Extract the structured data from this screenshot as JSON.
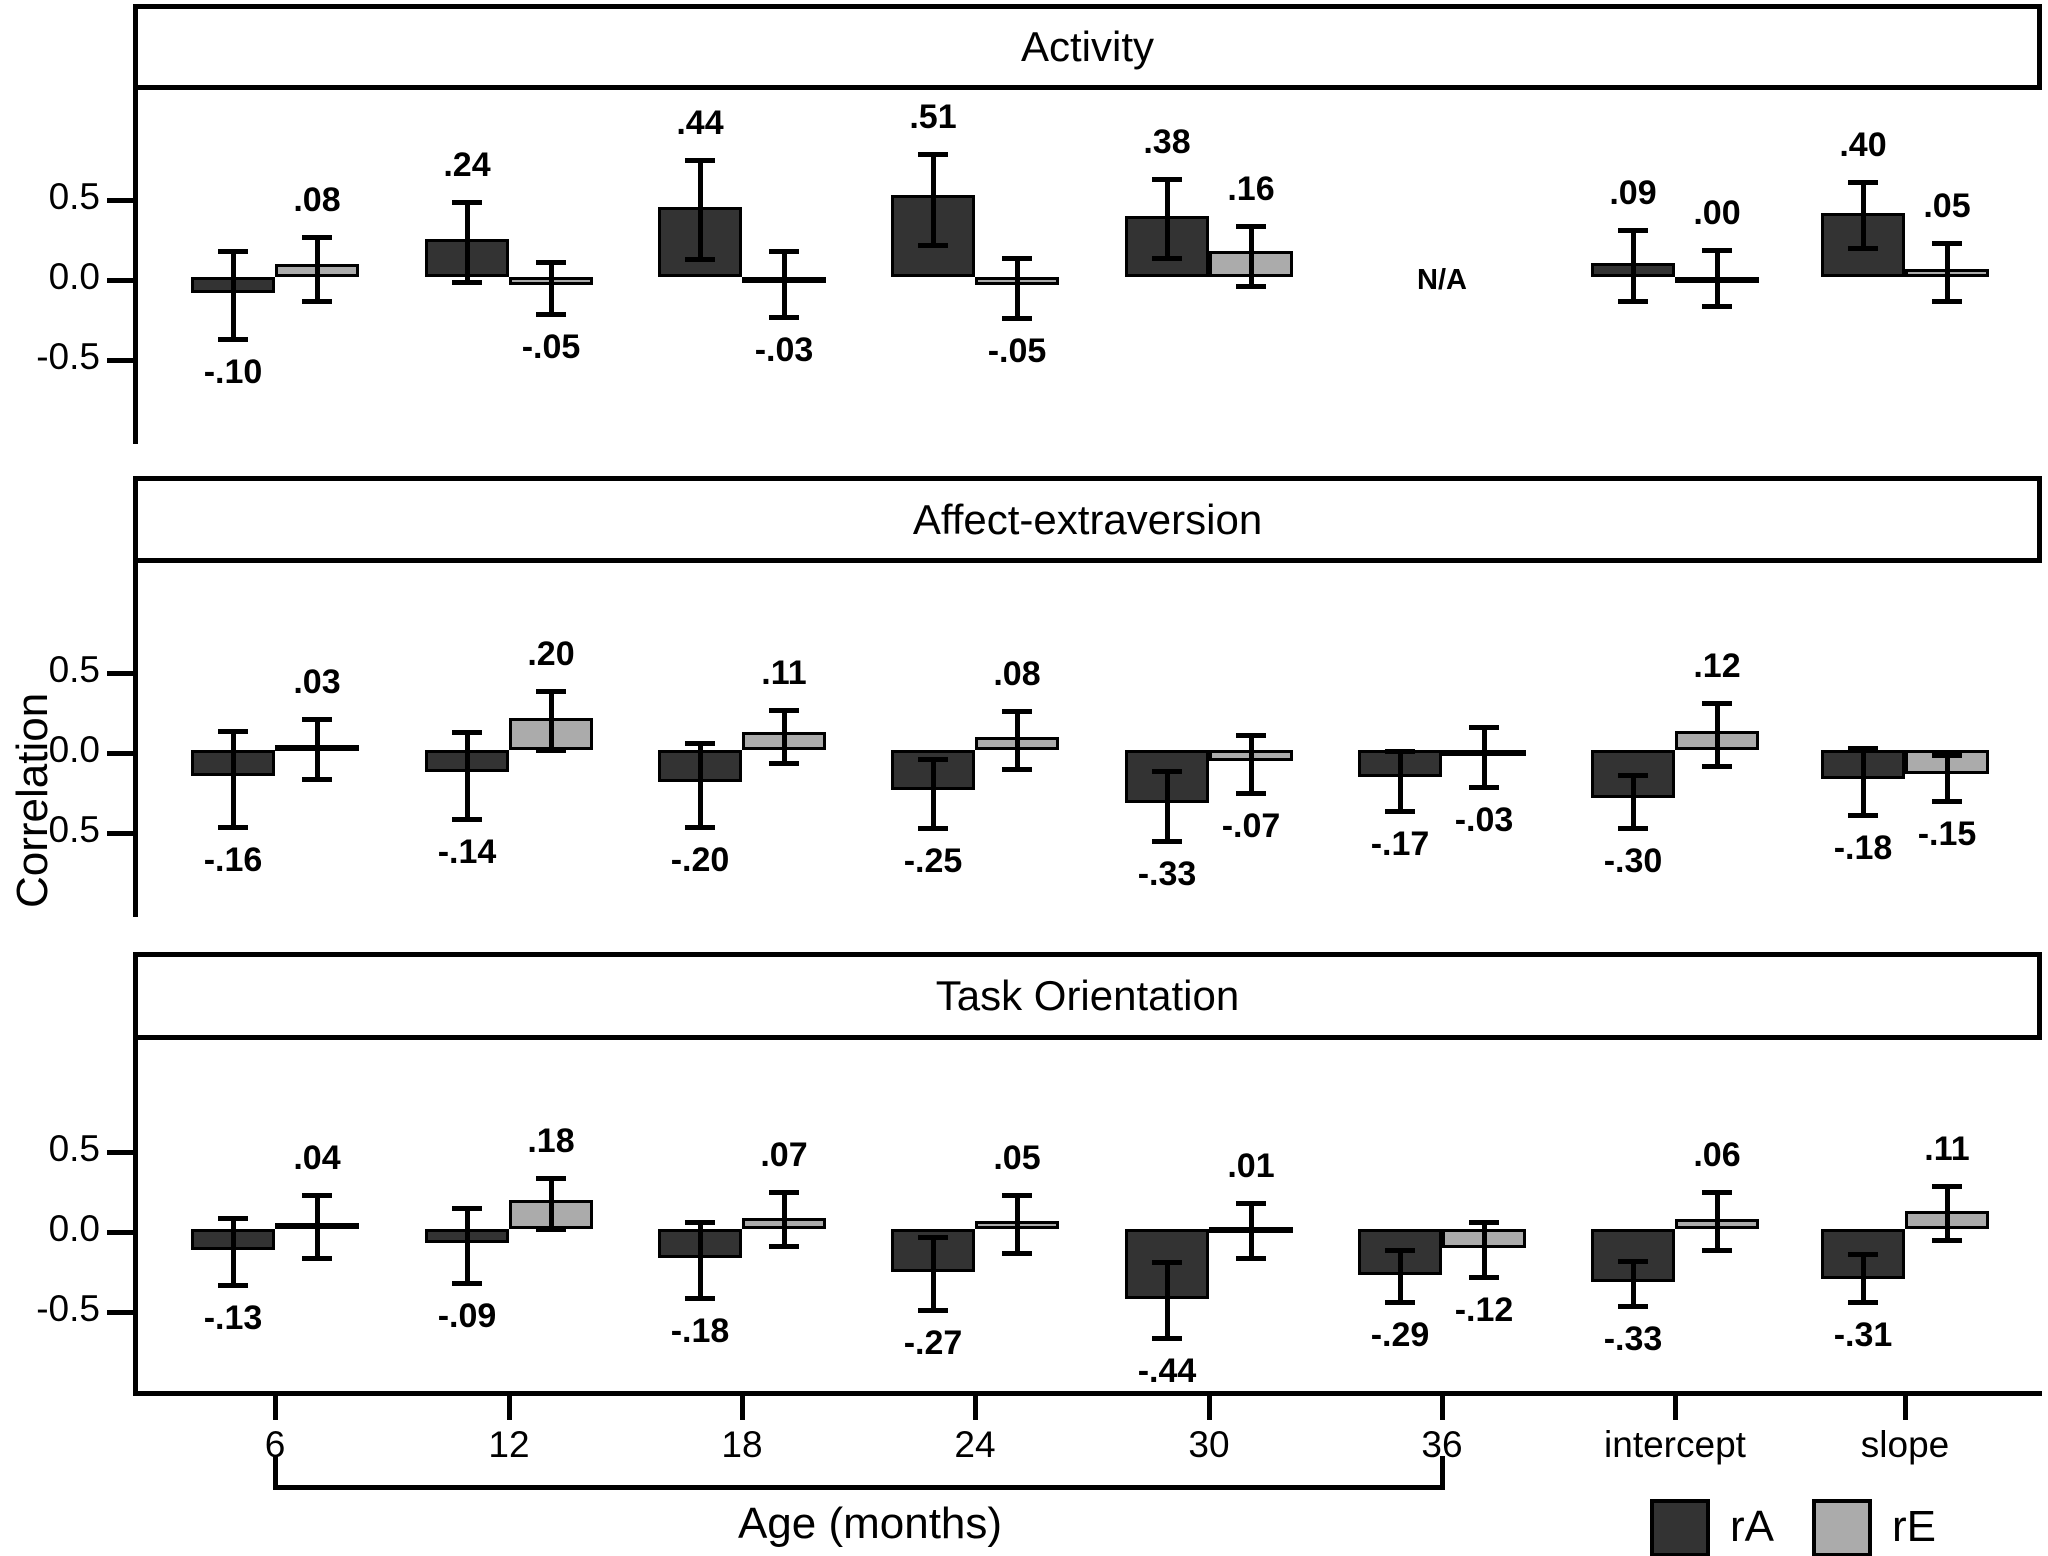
{
  "chart_data": {
    "type": "bar",
    "categories": [
      "6",
      "12",
      "18",
      "24",
      "30",
      "36",
      "intercept",
      "slope"
    ],
    "xlabel": "Age (months)",
    "ylabel": "Correlation",
    "ytick_labels": [
      "0.5",
      "0.0",
      "-0.5"
    ],
    "yticks": [
      0.5,
      0.0,
      -0.5
    ],
    "grid": false,
    "legend_position": "bottom-right",
    "legend": {
      "items": [
        {
          "label": "rA",
          "color": "#333333"
        },
        {
          "label": "rE",
          "color": "#ababab"
        }
      ]
    },
    "panels": [
      {
        "title": "Activity",
        "na": {
          "category": "36",
          "text": "N/A"
        },
        "series": [
          {
            "name": "rA",
            "color": "#333333",
            "bars": [
              {
                "label": "-.10",
                "v": -0.1,
                "lo": -0.37,
                "hi": 0.18
              },
              {
                "label": ".24",
                "v": 0.24,
                "lo": -0.01,
                "hi": 0.49
              },
              {
                "label": ".44",
                "v": 0.44,
                "lo": 0.13,
                "hi": 0.75
              },
              {
                "label": ".51",
                "v": 0.51,
                "lo": 0.22,
                "hi": 0.79
              },
              {
                "label": ".38",
                "v": 0.38,
                "lo": 0.14,
                "hi": 0.63
              },
              null,
              {
                "label": ".09",
                "v": 0.09,
                "lo": -0.13,
                "hi": 0.31
              },
              {
                "label": ".40",
                "v": 0.4,
                "lo": 0.2,
                "hi": 0.61
              }
            ]
          },
          {
            "name": "rE",
            "color": "#ababab",
            "bars": [
              {
                "label": ".08",
                "v": 0.08,
                "lo": -0.13,
                "hi": 0.27
              },
              {
                "label": "-.05",
                "v": -0.05,
                "lo": -0.21,
                "hi": 0.11
              },
              {
                "label": "-.03",
                "v": -0.03,
                "lo": -0.23,
                "hi": 0.18
              },
              {
                "label": "-.05",
                "v": -0.05,
                "lo": -0.24,
                "hi": 0.14
              },
              {
                "label": ".16",
                "v": 0.16,
                "lo": -0.04,
                "hi": 0.34
              },
              null,
              {
                "label": ".00",
                "v": 0.0,
                "lo": -0.16,
                "hi": 0.19
              },
              {
                "label": ".05",
                "v": 0.05,
                "lo": -0.13,
                "hi": 0.23
              }
            ]
          }
        ]
      },
      {
        "title": "Affect-extraversion",
        "na": null,
        "series": [
          {
            "name": "rA",
            "color": "#333333",
            "bars": [
              {
                "label": "-.16",
                "v": -0.16,
                "lo": -0.46,
                "hi": 0.14
              },
              {
                "label": "-.14",
                "v": -0.14,
                "lo": -0.41,
                "hi": 0.13
              },
              {
                "label": "-.20",
                "v": -0.2,
                "lo": -0.46,
                "hi": 0.06
              },
              {
                "label": "-.25",
                "v": -0.25,
                "lo": -0.47,
                "hi": -0.04
              },
              {
                "label": "-.33",
                "v": -0.33,
                "lo": -0.55,
                "hi": -0.11
              },
              {
                "label": "-.17",
                "v": -0.17,
                "lo": -0.36,
                "hi": 0.01
              },
              {
                "label": "-.30",
                "v": -0.3,
                "lo": -0.47,
                "hi": -0.14
              },
              {
                "label": "-.18",
                "v": -0.18,
                "lo": -0.39,
                "hi": 0.03
              }
            ]
          },
          {
            "name": "rE",
            "color": "#ababab",
            "bars": [
              {
                "label": ".03",
                "v": 0.03,
                "lo": -0.16,
                "hi": 0.21
              },
              {
                "label": ".20",
                "v": 0.2,
                "lo": 0.02,
                "hi": 0.39
              },
              {
                "label": ".11",
                "v": 0.11,
                "lo": -0.06,
                "hi": 0.27
              },
              {
                "label": ".08",
                "v": 0.08,
                "lo": -0.1,
                "hi": 0.26
              },
              {
                "label": "-.07",
                "v": -0.07,
                "lo": -0.25,
                "hi": 0.11
              },
              {
                "label": "-.03",
                "v": -0.03,
                "lo": -0.21,
                "hi": 0.16
              },
              {
                "label": ".12",
                "v": 0.12,
                "lo": -0.08,
                "hi": 0.31
              },
              {
                "label": "-.15",
                "v": -0.15,
                "lo": -0.3,
                "hi": -0.01
              }
            ]
          }
        ]
      },
      {
        "title": "Task Orientation",
        "na": null,
        "series": [
          {
            "name": "rA",
            "color": "#333333",
            "bars": [
              {
                "label": "-.13",
                "v": -0.13,
                "lo": -0.33,
                "hi": 0.09
              },
              {
                "label": "-.09",
                "v": -0.09,
                "lo": -0.32,
                "hi": 0.15
              },
              {
                "label": "-.18",
                "v": -0.18,
                "lo": -0.41,
                "hi": 0.06
              },
              {
                "label": "-.27",
                "v": -0.27,
                "lo": -0.49,
                "hi": -0.03
              },
              {
                "label": "-.44",
                "v": -0.44,
                "lo": -0.66,
                "hi": -0.19
              },
              {
                "label": "-.29",
                "v": -0.29,
                "lo": -0.44,
                "hi": -0.11
              },
              {
                "label": "-.33",
                "v": -0.33,
                "lo": -0.46,
                "hi": -0.18
              },
              {
                "label": "-.31",
                "v": -0.31,
                "lo": -0.44,
                "hi": -0.14
              }
            ]
          },
          {
            "name": "rE",
            "color": "#ababab",
            "bars": [
              {
                "label": ".04",
                "v": 0.04,
                "lo": -0.16,
                "hi": 0.23
              },
              {
                "label": ".18",
                "v": 0.18,
                "lo": 0.02,
                "hi": 0.34
              },
              {
                "label": ".07",
                "v": 0.07,
                "lo": -0.09,
                "hi": 0.25
              },
              {
                "label": ".05",
                "v": 0.05,
                "lo": -0.13,
                "hi": 0.23
              },
              {
                "label": ".01",
                "v": 0.01,
                "lo": -0.16,
                "hi": 0.18
              },
              {
                "label": "-.12",
                "v": -0.12,
                "lo": -0.28,
                "hi": 0.06
              },
              {
                "label": ".06",
                "v": 0.06,
                "lo": -0.11,
                "hi": 0.25
              },
              {
                "label": ".11",
                "v": 0.11,
                "lo": -0.05,
                "hi": 0.29
              }
            ]
          }
        ]
      }
    ]
  }
}
